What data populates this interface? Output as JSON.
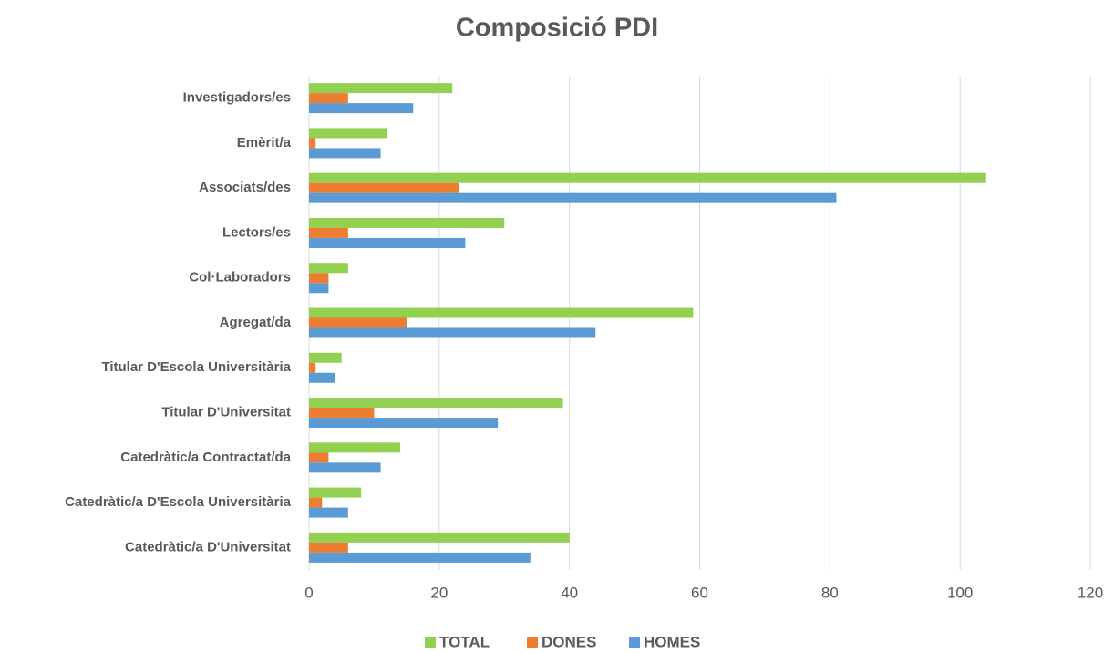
{
  "chart_data": {
    "type": "bar",
    "orientation": "horizontal",
    "title": "Composició PDI",
    "categories": [
      "Investigadors/es",
      "Emèrit/a",
      "Associats/des",
      "Lectors/es",
      "Col·Laboradors",
      "Agregat/da",
      "Titular D'Escola Universitària",
      "Titular D'Universitat",
      "Catedràtic/a Contractat/da",
      "Catedràtic/a D'Escola Universitària",
      "Catedràtic/a D'Universitat"
    ],
    "series": [
      {
        "name": "TOTAL",
        "color": "#92d050",
        "values": [
          22,
          12,
          104,
          30,
          6,
          59,
          5,
          39,
          14,
          8,
          40
        ]
      },
      {
        "name": "DONES",
        "color": "#ed7d31",
        "values": [
          6,
          1,
          23,
          6,
          3,
          15,
          1,
          10,
          3,
          2,
          6
        ]
      },
      {
        "name": "HOMES",
        "color": "#5b9bd5",
        "values": [
          16,
          11,
          81,
          24,
          3,
          44,
          4,
          29,
          11,
          6,
          34
        ]
      }
    ],
    "xlim": [
      0,
      120
    ],
    "xticks": [
      0,
      20,
      40,
      60,
      80,
      100,
      120
    ],
    "grid": true,
    "legend": "bottom"
  }
}
